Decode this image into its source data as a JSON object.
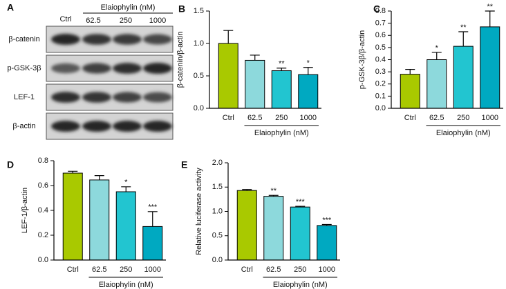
{
  "blot": {
    "panel": "A",
    "control": "Ctrl",
    "treatment": "Elaiophylin (nM)",
    "doses": [
      "62.5",
      "250",
      "1000"
    ],
    "rows": [
      "β-catenin",
      "p-GSK-3β",
      "LEF-1",
      "β-actin"
    ]
  },
  "chart_data": [
    {
      "type": "bar",
      "panel": "B",
      "ylabel": "β-catenin/β-actin",
      "xlabel": "Elaiophylin (nM)",
      "categories": [
        "Ctrl",
        "62.5",
        "250",
        "1000"
      ],
      "values": [
        1.0,
        0.74,
        0.58,
        0.52
      ],
      "errors": [
        0.2,
        0.08,
        0.04,
        0.11
      ],
      "significance": [
        null,
        null,
        "**",
        "*"
      ],
      "colors": [
        "#a9c900",
        "#8dd9dc",
        "#22c5d0",
        "#00a9c1"
      ],
      "ylim": [
        0,
        1.5
      ],
      "yticks": [
        {
          "value": 0,
          "label": "0.0"
        },
        {
          "value": 0.5,
          "label": "0.5"
        },
        {
          "value": 1,
          "label": "1.0"
        },
        {
          "value": 1.5,
          "label": "1.5"
        }
      ]
    },
    {
      "type": "bar",
      "panel": "C",
      "ylabel": "p-GSK-3β/β-actin",
      "xlabel": "Elaiophylin (nM)",
      "categories": [
        "Ctrl",
        "62.5",
        "250",
        "1000"
      ],
      "values": [
        0.28,
        0.4,
        0.51,
        0.67
      ],
      "errors": [
        0.04,
        0.06,
        0.12,
        0.13
      ],
      "significance": [
        null,
        "*",
        "**",
        "**"
      ],
      "colors": [
        "#a9c900",
        "#8dd9dc",
        "#22c5d0",
        "#00a9c1"
      ],
      "ylim": [
        0,
        0.8
      ],
      "yticks": [
        {
          "value": 0,
          "label": "0.0"
        },
        0.1,
        0.2,
        0.3,
        0.4,
        0.5,
        0.6,
        0.7,
        0.8
      ]
    },
    {
      "type": "bar",
      "panel": "D",
      "ylabel": "LEF-1/β-actin",
      "xlabel": "Elaiophylin (nM)",
      "categories": [
        "Ctrl",
        "62.5",
        "250",
        "1000"
      ],
      "values": [
        0.7,
        0.645,
        0.55,
        0.27
      ],
      "errors": [
        0.015,
        0.035,
        0.04,
        0.12
      ],
      "significance": [
        null,
        null,
        "*",
        "***"
      ],
      "colors": [
        "#a9c900",
        "#8dd9dc",
        "#22c5d0",
        "#00a9c1"
      ],
      "ylim": [
        0,
        0.8
      ],
      "yticks": [
        {
          "value": 0,
          "label": "0.0"
        },
        0.2,
        0.4,
        0.6,
        0.8
      ]
    },
    {
      "type": "bar",
      "panel": "E",
      "ylabel": "Relative luciferase activity",
      "xlabel": "Elaiophylin (nM)",
      "categories": [
        "Ctrl",
        "62.5",
        "250",
        "1000"
      ],
      "values": [
        1.43,
        1.31,
        1.09,
        0.71
      ],
      "errors": [
        0.02,
        0.02,
        0.015,
        0.02
      ],
      "significance": [
        null,
        "**",
        "***",
        "***"
      ],
      "colors": [
        "#a9c900",
        "#8dd9dc",
        "#22c5d0",
        "#00a9c1"
      ],
      "ylim": [
        0,
        2
      ],
      "yticks": [
        {
          "value": 0,
          "label": "0.0"
        },
        {
          "value": 0.5,
          "label": "0.5"
        },
        {
          "value": 1,
          "label": "1.0"
        },
        {
          "value": 1.5,
          "label": "1.5"
        },
        {
          "value": 2,
          "label": "2.0"
        }
      ]
    }
  ]
}
